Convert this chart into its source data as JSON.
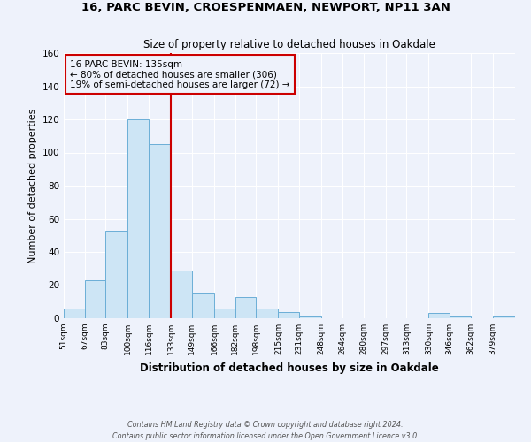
{
  "title": "16, PARC BEVIN, CROESPENMAEN, NEWPORT, NP11 3AN",
  "subtitle": "Size of property relative to detached houses in Oakdale",
  "xlabel": "Distribution of detached houses by size in Oakdale",
  "ylabel": "Number of detached properties",
  "bin_labels": [
    "51sqm",
    "67sqm",
    "83sqm",
    "100sqm",
    "116sqm",
    "133sqm",
    "149sqm",
    "166sqm",
    "182sqm",
    "198sqm",
    "215sqm",
    "231sqm",
    "248sqm",
    "264sqm",
    "280sqm",
    "297sqm",
    "313sqm",
    "330sqm",
    "346sqm",
    "362sqm",
    "379sqm"
  ],
  "bar_heights": [
    6,
    23,
    53,
    120,
    105,
    29,
    15,
    6,
    13,
    6,
    4,
    1,
    0,
    0,
    0,
    0,
    0,
    3,
    1,
    0,
    1
  ],
  "bin_edges": [
    51,
    67,
    83,
    100,
    116,
    133,
    149,
    166,
    182,
    198,
    215,
    231,
    248,
    264,
    280,
    297,
    313,
    330,
    346,
    362,
    379
  ],
  "bar_color": "#cde5f5",
  "bar_edgecolor": "#6baed6",
  "vline_x": 133,
  "vline_color": "#cc0000",
  "annotation_text": "16 PARC BEVIN: 135sqm\n← 80% of detached houses are smaller (306)\n19% of semi-detached houses are larger (72) →",
  "annotation_box_edgecolor": "#cc0000",
  "ylim": [
    0,
    160
  ],
  "yticks": [
    0,
    20,
    40,
    60,
    80,
    100,
    120,
    140,
    160
  ],
  "footer_line1": "Contains HM Land Registry data © Crown copyright and database right 2024.",
  "footer_line2": "Contains public sector information licensed under the Open Government Licence v3.0.",
  "bg_color": "#eef2fb",
  "grid_color": "#ffffff"
}
